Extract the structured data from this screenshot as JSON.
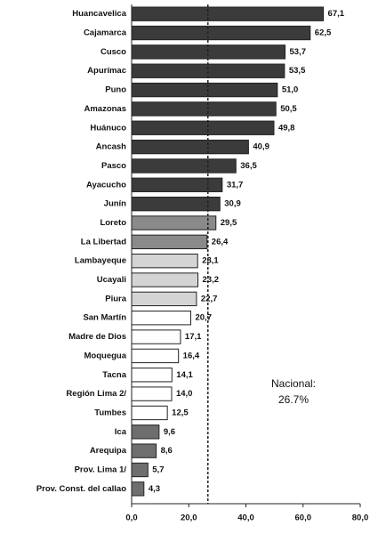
{
  "chart_data": {
    "type": "bar",
    "orientation": "horizontal",
    "categories": [
      "Huancavelica",
      "Cajamarca",
      "Cusco",
      "Apurímac",
      "Puno",
      "Amazonas",
      "Huánuco",
      "Ancash",
      "Pasco",
      "Ayacucho",
      "Junín",
      "Loreto",
      "La Libertad",
      "Lambayeque",
      "Ucayali",
      "Piura",
      "San Martín",
      "Madre de Dios",
      "Moquegua",
      "Tacna",
      "Región Lima 2/",
      "Tumbes",
      "Ica",
      "Arequipa",
      "Prov. Lima 1/",
      "Prov. Const. del callao"
    ],
    "values": [
      67.1,
      62.5,
      53.7,
      53.5,
      51.0,
      50.5,
      49.8,
      40.9,
      36.5,
      31.7,
      30.9,
      29.5,
      26.4,
      23.1,
      23.2,
      22.7,
      20.7,
      17.1,
      16.4,
      14.1,
      14.0,
      12.5,
      9.6,
      8.6,
      5.7,
      4.3
    ],
    "value_labels": [
      "67,1",
      "62,5",
      "53,7",
      "53,5",
      "51,0",
      "50,5",
      "49,8",
      "40,9",
      "36,5",
      "31,7",
      "30,9",
      "29,5",
      "26,4",
      "23,1",
      "23,2",
      "22,7",
      "20,7",
      "17,1",
      "16,4",
      "14,1",
      "14,0",
      "12,5",
      "9,6",
      "8,6",
      "5,7",
      "4,3"
    ],
    "colors": [
      "#3b3b3b",
      "#3b3b3b",
      "#3b3b3b",
      "#3b3b3b",
      "#3b3b3b",
      "#3b3b3b",
      "#3b3b3b",
      "#3b3b3b",
      "#3b3b3b",
      "#3b3b3b",
      "#3b3b3b",
      "#8a8a8a",
      "#8a8a8a",
      "#d4d4d4",
      "#d4d4d4",
      "#d4d4d4",
      "#ffffff",
      "#ffffff",
      "#ffffff",
      "#ffffff",
      "#ffffff",
      "#ffffff",
      "#6e6e6e",
      "#6e6e6e",
      "#6e6e6e",
      "#6e6e6e"
    ],
    "xlim": [
      0,
      80
    ],
    "xticks": [
      {
        "value": 0,
        "label": "0,0"
      },
      {
        "value": 20,
        "label": "20,0"
      },
      {
        "value": 40,
        "label": "40,0"
      },
      {
        "value": 60,
        "label": "60,0"
      },
      {
        "value": 80,
        "label": "80,0"
      }
    ],
    "annotation": "Nacional:",
    "reference_line": {
      "value": 26.7,
      "label": "26.7%"
    }
  }
}
